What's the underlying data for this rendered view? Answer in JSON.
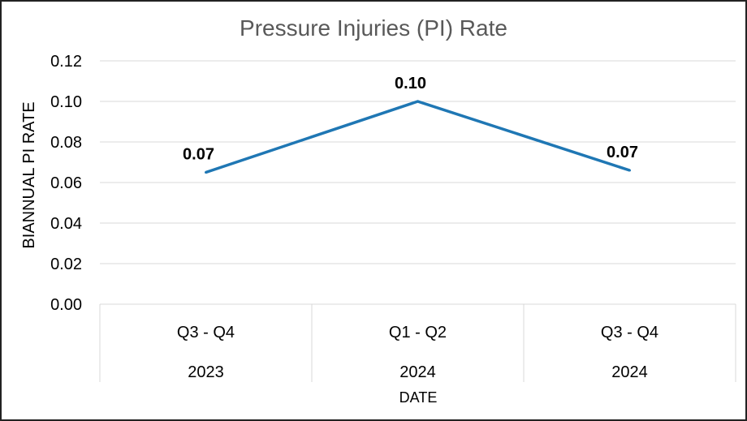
{
  "chart_data": {
    "type": "line",
    "title": "Pressure Injuries (PI) Rate",
    "xlabel": "DATE",
    "ylabel": "BIANNUAL PI RATE",
    "categories": [
      {
        "period": "Q3 - Q4",
        "year": "2023"
      },
      {
        "period": "Q1 - Q2",
        "year": "2024"
      },
      {
        "period": "Q3 - Q4",
        "year": "2024"
      }
    ],
    "series": [
      {
        "values": [
          0.065,
          0.1,
          0.066
        ],
        "data_labels": [
          "0.07",
          "0.10",
          "0.07"
        ],
        "color": "#1f77b4"
      }
    ],
    "y_ticks": [
      "0.00",
      "0.02",
      "0.04",
      "0.06",
      "0.08",
      "0.10",
      "0.12"
    ],
    "ylim": [
      0,
      0.12
    ],
    "grid": "horizontal",
    "legend": "none"
  }
}
